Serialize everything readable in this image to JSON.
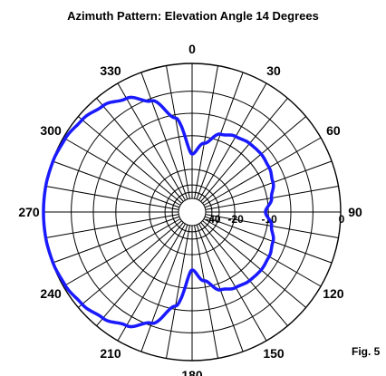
{
  "chart_data": {
    "type": "polar",
    "title": "Azimuth Pattern:  Elevation Angle 14 Degrees",
    "figure_label": "Fig. 5",
    "angle_ticks_deg": [
      0,
      30,
      60,
      90,
      120,
      150,
      180,
      210,
      240,
      270,
      300,
      330
    ],
    "angle_labels": [
      "0",
      "30",
      "60",
      "90",
      "120",
      "150",
      "180",
      "210",
      "240",
      "270",
      "300",
      "330"
    ],
    "radial_ticks_db": [
      0,
      -10,
      -20,
      -40
    ],
    "radial_labels": [
      "0",
      "-10",
      "-20",
      "-40"
    ],
    "radial_gridlines_db": [
      0,
      -3,
      -6,
      -10,
      -20,
      -30,
      -40
    ],
    "spoke_step_deg": 10,
    "series": [
      {
        "color": "#1a1aff",
        "angle_deg": [
          0,
          10,
          20,
          30,
          40,
          50,
          60,
          70,
          80,
          90,
          100,
          110,
          120,
          130,
          140,
          150,
          160,
          170,
          180,
          190,
          200,
          210,
          220,
          230,
          240,
          250,
          260,
          270,
          280,
          290,
          300,
          310,
          320,
          330,
          340,
          350
        ],
        "gain_db": [
          -14.5,
          -11.4,
          -8.7,
          -7.9,
          -7.5,
          -7.4,
          -7.6,
          -8.1,
          -9.1,
          -10.6,
          -9.1,
          -8.1,
          -7.6,
          -7.4,
          -7.5,
          -7.9,
          -8.7,
          -11.4,
          -14.5,
          -6.5,
          -3.3,
          -1.8,
          -1.0,
          -0.5,
          -0.2,
          -0.05,
          0,
          0,
          0,
          -0.05,
          -0.2,
          -0.5,
          -1.0,
          -1.8,
          -3.3,
          -6.5
        ]
      }
    ]
  }
}
